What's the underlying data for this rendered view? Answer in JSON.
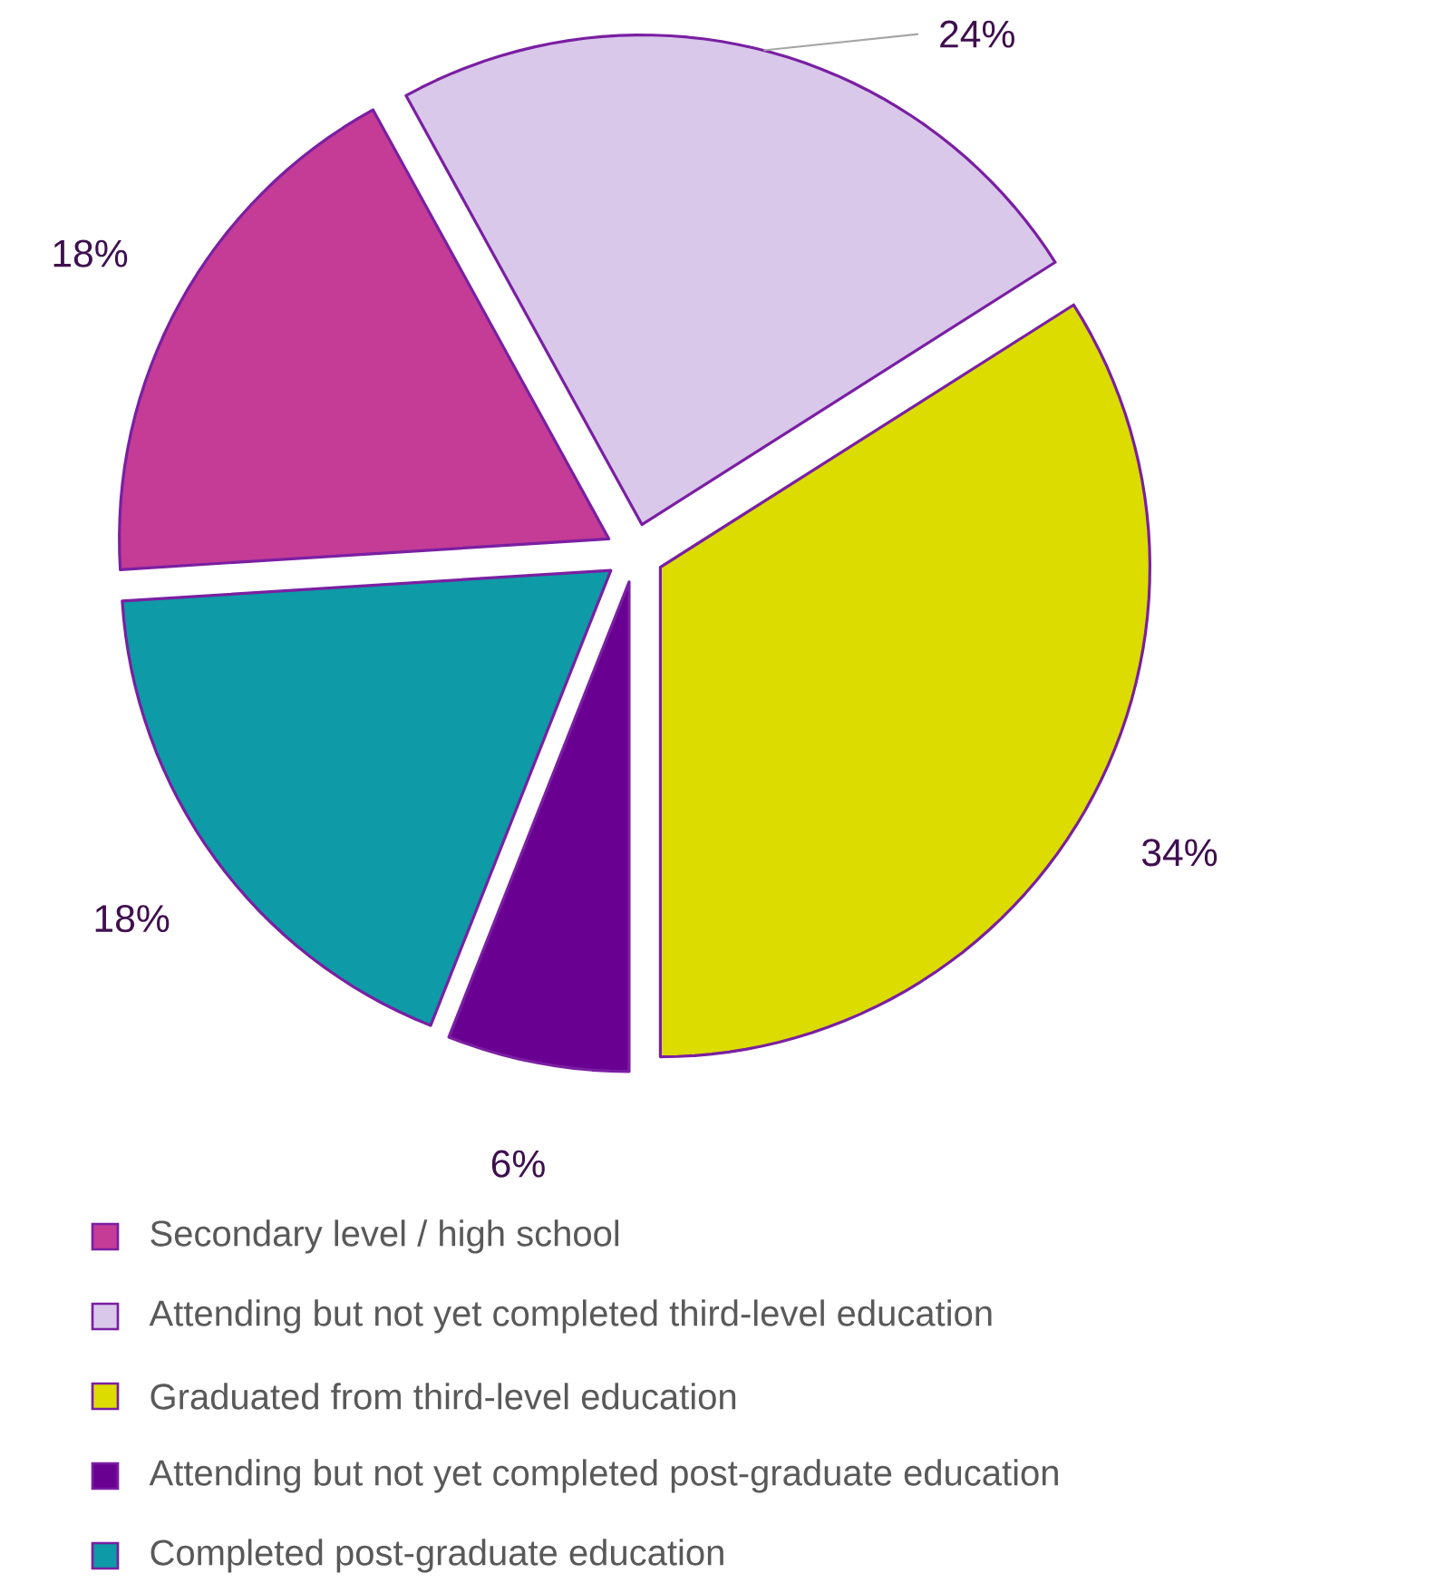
{
  "chart_data": {
    "type": "pie",
    "categories": [
      "Secondary level / high school",
      "Attending but not yet completed third-level education",
      "Graduated from third-level education",
      "Attending but not yet completed post-graduate education",
      "Completed post-graduate education"
    ],
    "values": [
      18,
      24,
      34,
      6,
      18
    ],
    "colors": [
      "#c43c96",
      "#d9c8ea",
      "#dcdc00",
      "#6a0091",
      "#0e9aa7"
    ],
    "value_labels": [
      "18%",
      "24%",
      "34%",
      "6%",
      "18%"
    ],
    "legend": "bottom"
  }
}
